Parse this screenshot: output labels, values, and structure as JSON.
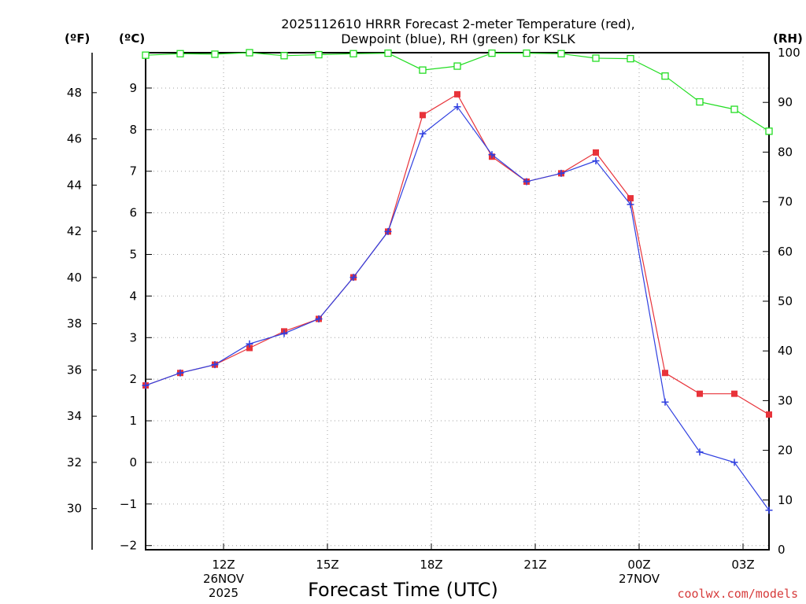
{
  "chart_data": {
    "type": "line",
    "title_line1": "2025112610 HRRR Forecast 2-meter Temperature (red),",
    "title_line2": "Dewpoint (blue), RH (green) for KSLK",
    "xlabel": "Forecast Time (UTC)",
    "credit": "coolwx.com/models",
    "unit_f": "(ºF)",
    "unit_c": "(ºC)",
    "unit_rh": "(RH)",
    "x_range": [
      9.75,
      27.75
    ],
    "c_range": [
      -2.1,
      9.85
    ],
    "rh_range": [
      0,
      100
    ],
    "x_ticks": [
      {
        "x": 12,
        "lines": [
          "12Z",
          "26NOV",
          "2025"
        ]
      },
      {
        "x": 15,
        "lines": [
          "15Z"
        ]
      },
      {
        "x": 18,
        "lines": [
          "18Z"
        ]
      },
      {
        "x": 21,
        "lines": [
          "21Z"
        ]
      },
      {
        "x": 24,
        "lines": [
          "00Z",
          "27NOV"
        ]
      },
      {
        "x": 27,
        "lines": [
          "03Z"
        ]
      }
    ],
    "c_ticks": [
      "-2",
      "-1",
      "0",
      "1",
      "2",
      "3",
      "4",
      "5",
      "6",
      "7",
      "8",
      "9"
    ],
    "f_ticks": [
      "30",
      "32",
      "34",
      "36",
      "38",
      "40",
      "42",
      "44",
      "46",
      "48"
    ],
    "rh_ticks": [
      "0",
      "10",
      "20",
      "30",
      "40",
      "50",
      "60",
      "70",
      "80",
      "90",
      "100"
    ],
    "x": [
      9.75,
      10.75,
      11.75,
      12.75,
      13.75,
      14.75,
      15.75,
      16.75,
      17.75,
      18.75,
      19.75,
      20.75,
      21.75,
      22.75,
      23.75,
      24.75,
      25.75,
      26.75,
      27.75
    ],
    "series": [
      {
        "name": "Temperature",
        "color": "#e8333a",
        "marker": "filled-square",
        "values": [
          1.85,
          2.15,
          2.35,
          2.75,
          3.15,
          3.45,
          4.45,
          5.55,
          8.35,
          8.85,
          7.35,
          6.75,
          6.95,
          7.45,
          6.35,
          2.15,
          1.65,
          1.65,
          1.15
        ]
      },
      {
        "name": "Dewpoint",
        "color": "#2f3fe0",
        "marker": "plus",
        "values": [
          1.85,
          2.15,
          2.35,
          2.85,
          3.1,
          3.45,
          4.45,
          5.55,
          7.9,
          8.55,
          7.4,
          6.75,
          6.95,
          7.25,
          6.2,
          1.45,
          0.25,
          0.0,
          -1.15
        ]
      },
      {
        "name": "RH",
        "color": "#22dd22",
        "marker": "open-square",
        "axis": "rh",
        "values": [
          99.5,
          99.8,
          99.7,
          100,
          99.4,
          99.6,
          99.8,
          99.9,
          96.5,
          97.3,
          99.9,
          99.9,
          99.8,
          98.9,
          98.8,
          95.3,
          90.1,
          88.6,
          84.2
        ]
      }
    ]
  }
}
